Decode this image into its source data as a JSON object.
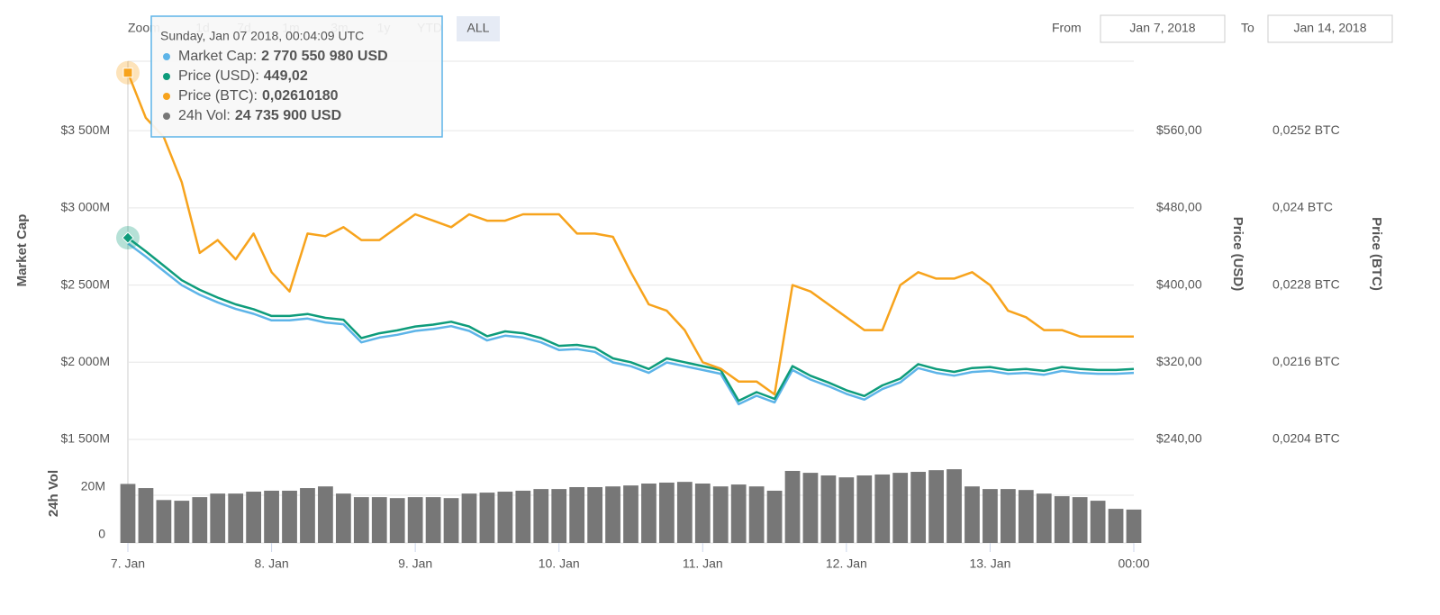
{
  "chart_data": {
    "type": "line",
    "controls": {
      "zoom": "Zoom",
      "buttons": [
        "1d",
        "7d",
        "1m",
        "3m",
        "1y",
        "YTD",
        "ALL"
      ],
      "from_label": "From",
      "from": "Jan 7, 2018",
      "to_label": "To",
      "to": "Jan 14, 2018"
    },
    "x": [
      "2018-01-07T00:00",
      "2018-01-07T03:00",
      "2018-01-07T06:00",
      "2018-01-07T09:00",
      "2018-01-07T12:00",
      "2018-01-07T15:00",
      "2018-01-07T18:00",
      "2018-01-07T21:00",
      "2018-01-08T00:00",
      "2018-01-08T03:00",
      "2018-01-08T06:00",
      "2018-01-08T09:00",
      "2018-01-08T12:00",
      "2018-01-08T15:00",
      "2018-01-08T18:00",
      "2018-01-08T21:00",
      "2018-01-09T00:00",
      "2018-01-09T03:00",
      "2018-01-09T06:00",
      "2018-01-09T09:00",
      "2018-01-09T12:00",
      "2018-01-09T15:00",
      "2018-01-09T18:00",
      "2018-01-09T21:00",
      "2018-01-10T00:00",
      "2018-01-10T03:00",
      "2018-01-10T06:00",
      "2018-01-10T09:00",
      "2018-01-10T12:00",
      "2018-01-10T15:00",
      "2018-01-10T18:00",
      "2018-01-10T21:00",
      "2018-01-11T00:00",
      "2018-01-11T03:00",
      "2018-01-11T06:00",
      "2018-01-11T09:00",
      "2018-01-11T12:00",
      "2018-01-11T15:00",
      "2018-01-11T18:00",
      "2018-01-11T21:00",
      "2018-01-12T00:00",
      "2018-01-12T03:00",
      "2018-01-12T06:00",
      "2018-01-12T09:00",
      "2018-01-12T12:00",
      "2018-01-12T15:00",
      "2018-01-12T18:00",
      "2018-01-12T21:00",
      "2018-01-13T00:00",
      "2018-01-13T03:00",
      "2018-01-13T06:00",
      "2018-01-13T09:00",
      "2018-01-13T12:00",
      "2018-01-13T15:00",
      "2018-01-13T18:00",
      "2018-01-13T21:00",
      "2018-01-14T00:00"
    ],
    "xlim": [
      "2018-01-07T00:00",
      "2018-01-14T00:00"
    ],
    "xticks": [
      {
        "value": "2018-01-07T00:00",
        "label": "7. Jan"
      },
      {
        "value": "2018-01-08T00:00",
        "label": "8. Jan"
      },
      {
        "value": "2018-01-09T00:00",
        "label": "9. Jan"
      },
      {
        "value": "2018-01-10T00:00",
        "label": "10. Jan"
      },
      {
        "value": "2018-01-11T00:00",
        "label": "11. Jan"
      },
      {
        "value": "2018-01-12T00:00",
        "label": "12. Jan"
      },
      {
        "value": "2018-01-13T00:00",
        "label": "13. Jan"
      },
      {
        "value": "2018-01-14T00:00",
        "label": "00:00"
      }
    ],
    "ylabel": "Market Cap",
    "ylim": [
      1500,
      3950
    ],
    "yticks": [
      {
        "value": 1500,
        "label": "$1 500M"
      },
      {
        "value": 2000,
        "label": "$2 000M"
      },
      {
        "value": 2500,
        "label": "$2 500M"
      },
      {
        "value": 3000,
        "label": "$3 000M"
      },
      {
        "value": 3500,
        "label": "$3 500M"
      }
    ],
    "y2label": "Price (USD)",
    "y2lim": [
      240,
      632
    ],
    "y2ticks": [
      {
        "value": 240,
        "label": "$240,00"
      },
      {
        "value": 320,
        "label": "$320,00"
      },
      {
        "value": 400,
        "label": "$400,00"
      },
      {
        "value": 480,
        "label": "$480,00"
      },
      {
        "value": 560,
        "label": "$560,00"
      }
    ],
    "y3label": "Price (BTC)",
    "y3lim": [
      0.0204,
      0.02628
    ],
    "y3ticks": [
      {
        "value": 0.0204,
        "label": "0,0204 BTC"
      },
      {
        "value": 0.0216,
        "label": "0,0216 BTC"
      },
      {
        "value": 0.0228,
        "label": "0,0228 BTC"
      },
      {
        "value": 0.024,
        "label": "0,024 BTC"
      },
      {
        "value": 0.0252,
        "label": "0,0252 BTC"
      }
    ],
    "y4label": "24h Vol",
    "y4lim": [
      0,
      40000000
    ],
    "y4ticks": [
      0,
      {
        "value": 20000000,
        "label": "20M"
      }
    ],
    "grid": true,
    "series": [
      {
        "name": "Market Cap",
        "color": "#5db4e8",
        "axis": "y",
        "type": "line",
        "values": [
          2770.55,
          2684,
          2591,
          2499,
          2437,
          2388,
          2345,
          2314,
          2271,
          2271,
          2283,
          2258,
          2246,
          2129,
          2160,
          2178,
          2203,
          2215,
          2234,
          2203,
          2141,
          2172,
          2160,
          2129,
          2079,
          2085,
          2067,
          1999,
          1974,
          1931,
          1999,
          1974,
          1950,
          1925,
          1728,
          1783,
          1740,
          1950,
          1888,
          1845,
          1795,
          1758,
          1826,
          1870,
          1962,
          1931,
          1913,
          1937,
          1944,
          1925,
          1931,
          1919,
          1944,
          1931,
          1925,
          1925,
          1931
        ]
      },
      {
        "name": "Price (USD)",
        "color": "#0e9c7b",
        "axis": "y2",
        "type": "line",
        "values": [
          449.02,
          435,
          420,
          405,
          395,
          387,
          380,
          375,
          368,
          368,
          370,
          366,
          364,
          345,
          350,
          353,
          357,
          359,
          362,
          357,
          347,
          352,
          350,
          345,
          337,
          338,
          335,
          324,
          320,
          313,
          324,
          320,
          316,
          312,
          280,
          289,
          282,
          316,
          306,
          299,
          291,
          285,
          296,
          303,
          318,
          313,
          310,
          314,
          315,
          312,
          313,
          311,
          315,
          313,
          312,
          312,
          313
        ]
      },
      {
        "name": "Price (BTC)",
        "color": "#f7a31c",
        "axis": "y3",
        "type": "line",
        "values": [
          0.0261018,
          0.0254,
          0.0251,
          0.0244,
          0.0233,
          0.0235,
          0.0232,
          0.0236,
          0.023,
          0.0227,
          0.0236,
          0.02356,
          0.0237,
          0.0235,
          0.0235,
          0.0237,
          0.0239,
          0.0238,
          0.0237,
          0.0239,
          0.0238,
          0.0238,
          0.0239,
          0.0239,
          0.0239,
          0.0236,
          0.0236,
          0.02355,
          0.023,
          0.0225,
          0.0224,
          0.0221,
          0.0216,
          0.0215,
          0.0213,
          0.0213,
          0.0211,
          0.0228,
          0.0227,
          0.0225,
          0.0223,
          0.0221,
          0.0221,
          0.0228,
          0.023,
          0.0229,
          0.0229,
          0.023,
          0.0228,
          0.0224,
          0.0223,
          0.0221,
          0.0221,
          0.022,
          0.022,
          0.022,
          0.022
        ]
      },
      {
        "name": "24h Vol",
        "color": "#777777",
        "axis": "y4",
        "type": "column",
        "values": [
          24735900,
          23000000,
          18000000,
          17700000,
          19200000,
          20700000,
          20700000,
          21500000,
          21900000,
          21900000,
          23000000,
          23700000,
          20700000,
          19200000,
          19200000,
          18800000,
          19200000,
          19200000,
          18800000,
          20700000,
          21100000,
          21500000,
          21900000,
          22600000,
          22600000,
          23400000,
          23400000,
          23700000,
          24100000,
          24900000,
          25300000,
          25600000,
          24900000,
          23700000,
          24500000,
          23700000,
          21900000,
          30200000,
          29400000,
          28300000,
          27500000,
          28300000,
          28700000,
          29400000,
          29800000,
          30500000,
          30900000,
          23700000,
          22600000,
          22600000,
          22200000,
          20700000,
          19600000,
          19200000,
          17700000,
          14300000,
          14000000
        ]
      }
    ],
    "tooltip": {
      "title": "Sunday, Jan 07 2018, 00:04:09 UTC",
      "items": [
        {
          "label": "Market Cap:",
          "value": "2 770 550 980 USD"
        },
        {
          "label": "Price (USD):",
          "value": "449,02"
        },
        {
          "label": "Price (BTC):",
          "value": "0,02610180"
        },
        {
          "label": "24h Vol:",
          "value": "24 735 900 USD"
        }
      ]
    }
  }
}
